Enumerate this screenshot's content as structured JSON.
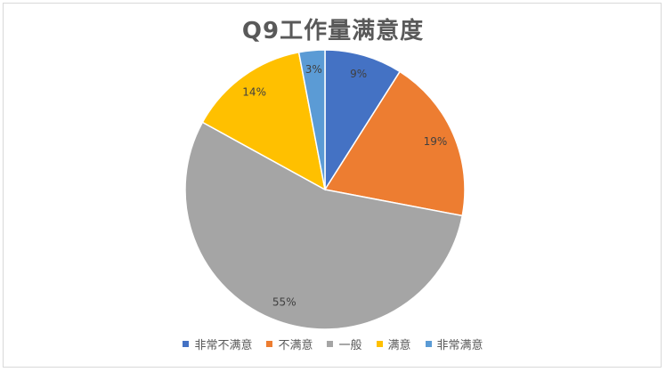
{
  "chart_data": {
    "type": "pie",
    "title": "Q9工作量满意度",
    "categories": [
      "非常不满意",
      "不满意",
      "一般",
      "满意",
      "非常满意"
    ],
    "values": [
      9,
      19,
      55,
      14,
      3
    ],
    "data_labels": [
      "9%",
      "19%",
      "55%",
      "14%",
      "3%"
    ],
    "colors": [
      "#4472c4",
      "#ed7d31",
      "#a5a5a5",
      "#ffc000",
      "#5b9bd5"
    ],
    "legend_position": "bottom"
  }
}
